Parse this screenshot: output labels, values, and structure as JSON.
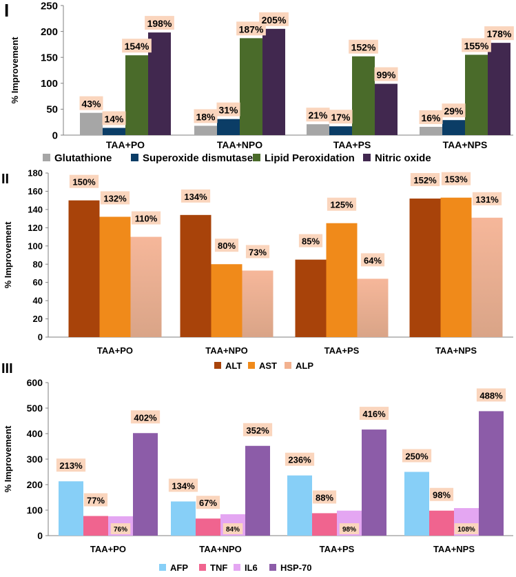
{
  "chart_data": [
    {
      "type": "bar",
      "panel_label": "I",
      "title": "",
      "xlabel": "",
      "ylabel": "% Improvement",
      "ylim": [
        0,
        250
      ],
      "yticks": [
        0,
        50,
        100,
        150,
        200,
        250
      ],
      "grid": false,
      "legend_position": "bottom",
      "categories": [
        "TAA+PO",
        "TAA+NPO",
        "TAA+PS",
        "TAA+NPS"
      ],
      "series": [
        {
          "name": "Glutathione",
          "color": "#a6a6a6",
          "values": [
            43,
            18,
            21,
            16
          ],
          "labels": [
            "43%",
            "18%",
            "21%",
            "16%"
          ]
        },
        {
          "name": "Superoxide dismutase",
          "color": "#0b3d66",
          "values": [
            14,
            31,
            17,
            29
          ],
          "labels": [
            "14%",
            "31%",
            "17%",
            "29%"
          ]
        },
        {
          "name": "Lipid Peroxidation",
          "color": "#4a6b2a",
          "values": [
            154,
            187,
            152,
            155
          ],
          "labels": [
            "154%",
            "187%",
            "152%",
            "155%"
          ]
        },
        {
          "name": "Nitric oxide",
          "color": "#41284f",
          "values": [
            198,
            205,
            99,
            178
          ],
          "labels": [
            "198%",
            "205%",
            "99%",
            "178%"
          ]
        }
      ]
    },
    {
      "type": "bar",
      "panel_label": "II",
      "title": "",
      "xlabel": "",
      "ylabel": "% Improvement",
      "ylim": [
        0,
        180
      ],
      "yticks": [
        0,
        20,
        40,
        60,
        80,
        100,
        120,
        140,
        160,
        180
      ],
      "grid": false,
      "legend_position": "bottom",
      "categories": [
        "TAA+PO",
        "TAA+NPO",
        "TAA+PS",
        "TAA+NPS"
      ],
      "series": [
        {
          "name": "ALT",
          "color": "#a8430a",
          "values": [
            150,
            134,
            85,
            152
          ],
          "labels": [
            "150%",
            "134%",
            "85%",
            "152%"
          ]
        },
        {
          "name": "AST",
          "color": "#f08a1a",
          "values": [
            132,
            80,
            125,
            153
          ],
          "labels": [
            "132%",
            "80%",
            "125%",
            "153%"
          ]
        },
        {
          "name": "ALP",
          "color": "#f2b18f",
          "values": [
            110,
            73,
            64,
            131
          ],
          "labels": [
            "110%",
            "73%",
            "64%",
            "131%"
          ]
        }
      ]
    },
    {
      "type": "bar",
      "panel_label": "III",
      "title": "",
      "xlabel": "",
      "ylabel": "% Improvement",
      "ylim": [
        0,
        600
      ],
      "yticks": [
        0,
        100,
        200,
        300,
        400,
        500,
        600
      ],
      "grid": false,
      "legend_position": "bottom",
      "categories": [
        "TAA+PO",
        "TAA+NPO",
        "TAA+PS",
        "TAA+NPS"
      ],
      "series": [
        {
          "name": "AFP",
          "color": "#87cff7",
          "values": [
            213,
            134,
            236,
            250
          ],
          "labels": [
            "213%",
            "134%",
            "236%",
            "250%"
          ]
        },
        {
          "name": "TNF",
          "color": "#f0648f",
          "values": [
            77,
            67,
            88,
            98
          ],
          "labels": [
            "77%",
            "67%",
            "88%",
            "98%"
          ]
        },
        {
          "name": "IL6",
          "color": "#e4a6f2",
          "values": [
            76,
            84,
            98,
            108
          ],
          "labels": [
            "76%",
            "84%",
            "98%",
            "108%"
          ]
        },
        {
          "name": "HSP-70",
          "color": "#8c5ca8",
          "values": [
            402,
            352,
            416,
            488
          ],
          "labels": [
            "402%",
            "352%",
            "416%",
            "488%"
          ]
        }
      ]
    }
  ]
}
